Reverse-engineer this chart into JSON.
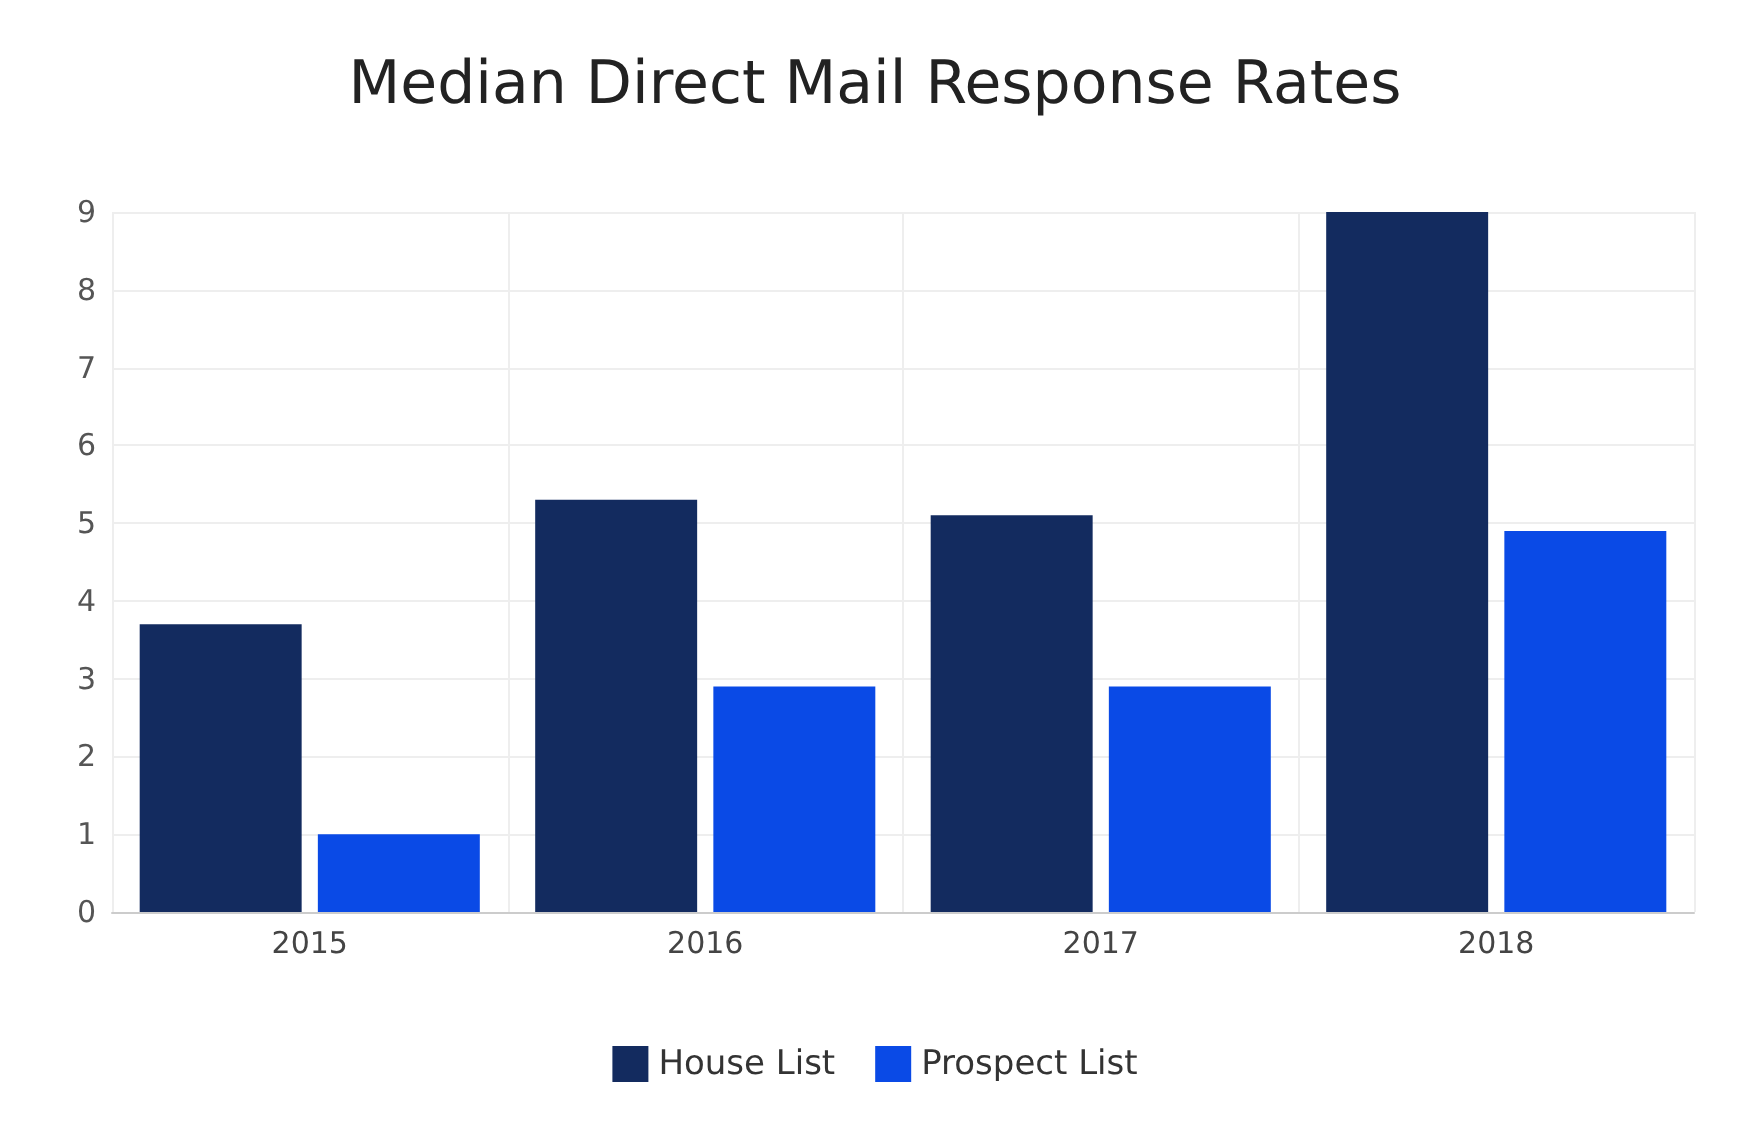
{
  "chart_data": {
    "type": "bar",
    "title": "Median Direct Mail Response Rates",
    "categories": [
      "2015",
      "2016",
      "2017",
      "2018"
    ],
    "series": [
      {
        "name": "House List",
        "color": "#132b5f",
        "values": [
          3.7,
          5.3,
          5.1,
          9.0
        ]
      },
      {
        "name": "Prospect List",
        "color": "#0a4ae6",
        "values": [
          1.0,
          2.9,
          2.9,
          4.9
        ]
      }
    ],
    "ylim": [
      0,
      9
    ],
    "yticks": [
      0,
      1,
      2,
      3,
      4,
      5,
      6,
      7,
      8,
      9
    ],
    "grid": true,
    "legend": "bottom"
  }
}
